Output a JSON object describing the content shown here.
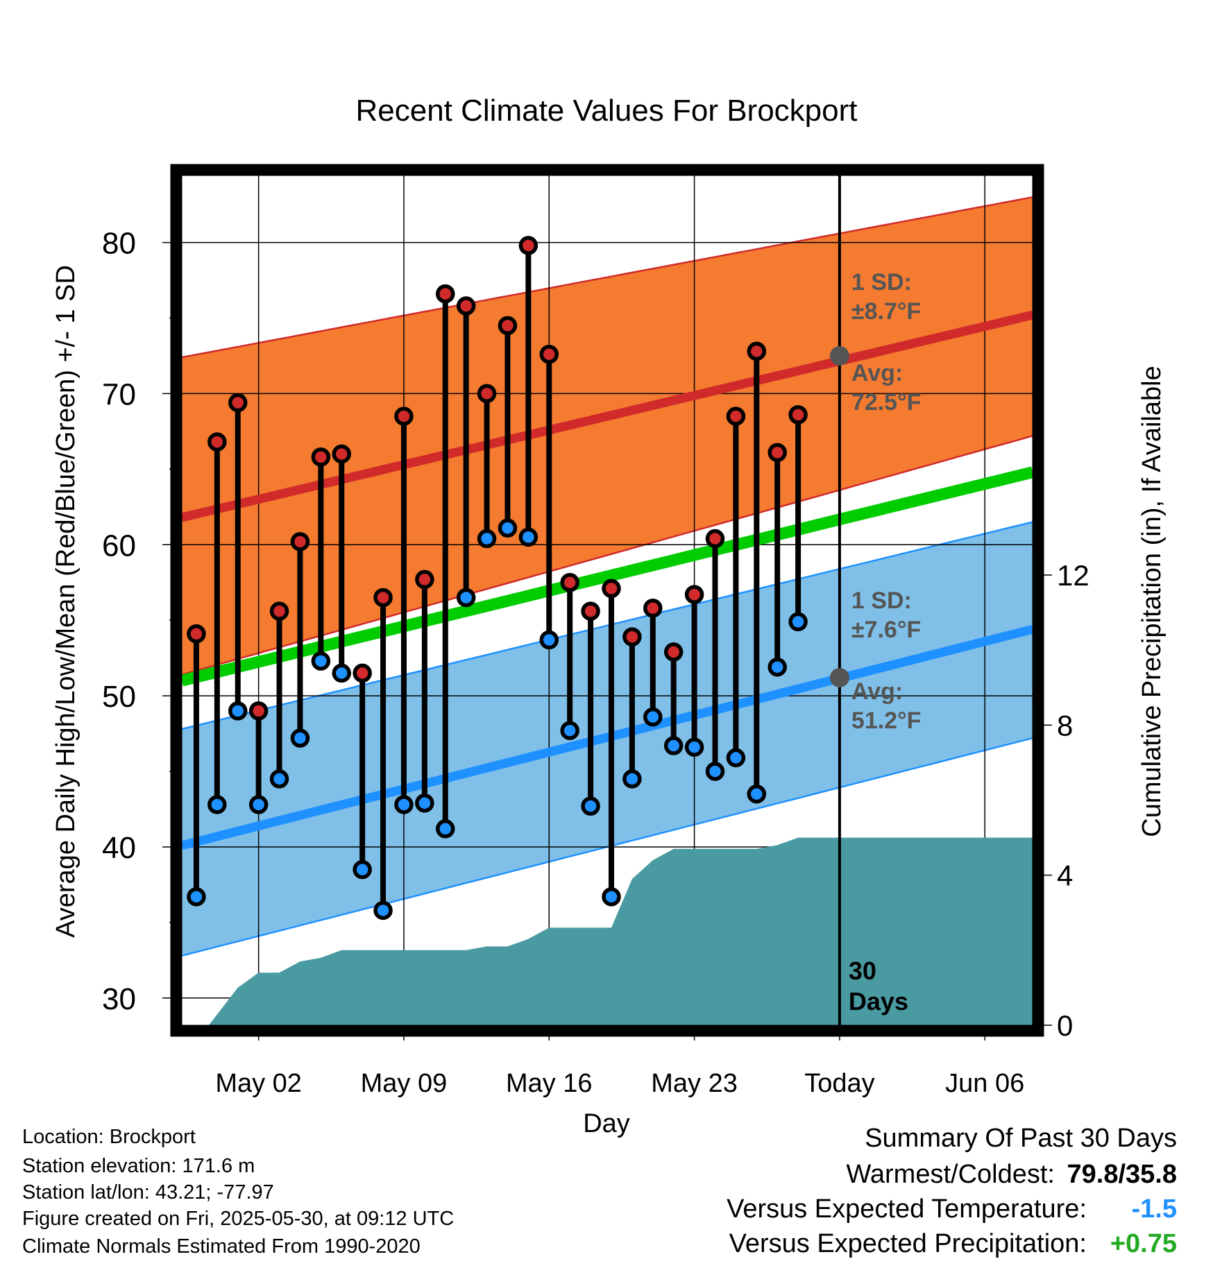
{
  "chart_data": {
    "type": "line",
    "title": "Recent Climate Values For Brockport",
    "xlabel": "Day",
    "ylabel": "Average Daily High/Low/Mean (Red/Blue/Green) +/- 1 SD",
    "ylabel_right": "Cumulative Precipitation (in), If Available",
    "x_tick_labels": [
      "May 02",
      "May 09",
      "May 16",
      "May 23",
      "Today",
      "Jun 06"
    ],
    "y_ticks": [
      30,
      40,
      50,
      60,
      70,
      80
    ],
    "y_right_ticks": [
      0,
      4,
      8,
      12
    ],
    "ylim": [
      28.2,
      84.8
    ],
    "ylim_right": [
      0,
      22.8
    ],
    "x_range_days": [
      -31.7,
      9.3
    ],
    "today_label": [
      "30",
      "Days"
    ],
    "high_normal": {
      "start": 61.8,
      "end": 75.2
    },
    "low_normal": {
      "start": 40.1,
      "end": 54.4
    },
    "mean_normal": {
      "start": 51.0,
      "end": 64.8
    },
    "high_sd_band": {
      "upper_start": 72.4,
      "upper_end": 83.0,
      "lower_start": 51.4,
      "lower_end": 67.2
    },
    "low_sd_band": {
      "upper_start": 47.8,
      "upper_end": 61.5,
      "lower_start": 32.8,
      "lower_end": 47.2
    },
    "annotations": {
      "high_sd": [
        "1 SD:",
        "±8.7°F"
      ],
      "high_avg": [
        "Avg:",
        "72.5°F"
      ],
      "low_sd": [
        "1 SD:",
        "±7.6°F"
      ],
      "low_avg": [
        "Avg:",
        "51.2°F"
      ]
    },
    "today_high_avg": 72.5,
    "today_low_avg": 51.2,
    "series": [
      {
        "name": "High",
        "x": [
          -31,
          -30,
          -29,
          -28,
          -27,
          -26,
          -25,
          -24,
          -23,
          -22,
          -21,
          -20,
          -19,
          -18,
          -17,
          -16,
          -15,
          -14,
          -13,
          -12,
          -11,
          -10,
          -9,
          -8,
          -7,
          -6,
          -5,
          -4,
          -3,
          -2,
          -1
        ],
        "values": [
          54.1,
          66.8,
          69.4,
          49.0,
          55.6,
          60.2,
          65.8,
          66.0,
          51.5,
          56.5,
          68.5,
          57.7,
          76.6,
          75.8,
          70.0,
          74.5,
          79.8,
          72.6,
          57.5,
          55.6,
          57.1,
          53.9,
          55.8,
          52.9,
          56.7,
          60.4,
          68.5,
          72.8,
          66.1,
          68.6,
          null
        ]
      },
      {
        "name": "Low",
        "x": [
          -31,
          -30,
          -29,
          -28,
          -27,
          -26,
          -25,
          -24,
          -23,
          -22,
          -21,
          -20,
          -19,
          -18,
          -17,
          -16,
          -15,
          -14,
          -13,
          -12,
          -11,
          -10,
          -9,
          -8,
          -7,
          -6,
          -5,
          -4,
          -3,
          -2,
          -1
        ],
        "values": [
          36.7,
          42.8,
          49.0,
          42.8,
          44.5,
          47.2,
          52.3,
          51.5,
          38.5,
          35.8,
          42.8,
          42.9,
          41.2,
          56.5,
          60.4,
          61.1,
          60.5,
          53.7,
          47.7,
          42.7,
          36.7,
          44.5,
          48.6,
          46.7,
          46.6,
          45.0,
          45.9,
          43.5,
          51.9,
          54.9,
          null
        ]
      },
      {
        "name": "Cumulative Precipitation",
        "x": [
          -30.4,
          -29,
          -28,
          -27,
          -26,
          -25,
          -24,
          -23,
          -22,
          -21,
          -20,
          -19,
          -18,
          -17,
          -16,
          -15,
          -14,
          -13,
          -12,
          -11,
          -10,
          -9,
          -8,
          -7,
          -6,
          -5,
          -4,
          -3,
          -2,
          -1,
          0,
          9.3
        ],
        "values": [
          0.0,
          1.0,
          1.4,
          1.4,
          1.7,
          1.8,
          2.0,
          2.0,
          2.0,
          2.0,
          2.0,
          2.0,
          2.0,
          2.1,
          2.1,
          2.3,
          2.6,
          2.6,
          2.6,
          2.6,
          3.9,
          4.4,
          4.7,
          4.7,
          4.7,
          4.7,
          4.7,
          4.8,
          5.0,
          5.0,
          5.0,
          5.0
        ]
      }
    ]
  },
  "footer": {
    "location": "Location: Brockport",
    "elevation": "Station elevation: 171.6 m",
    "latlon": "Station lat/lon: 43.21; -77.97",
    "created": "Figure created on Fri, 2025-05-30, at 09:12 UTC",
    "normals": "Climate Normals Estimated From 1990-2020"
  },
  "summary": {
    "title": "Summary Of Past 30 Days",
    "warm_label": "Warmest/Coldest:",
    "warm_value": "79.8/35.8",
    "temp_label": "Versus Expected Temperature:",
    "temp_value": "-1.5",
    "precip_label": "Versus Expected Precipitation:",
    "precip_value": "+0.75"
  },
  "colors": {
    "high": "#d12a2a",
    "high_band": "#f47b30",
    "low": "#1e90ff",
    "low_band": "#80c0e8",
    "mean": "#00cc00",
    "precip": "#4a9aa2",
    "annotation": "#555555",
    "temp_anomaly": "#1e90ff",
    "precip_anomaly": "#22aa22"
  }
}
